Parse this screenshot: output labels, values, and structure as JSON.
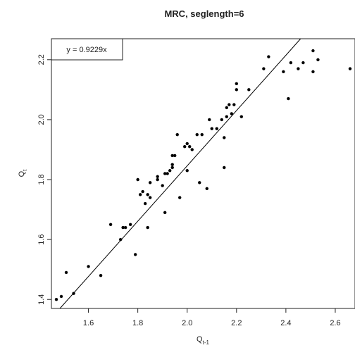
{
  "chart_data": {
    "type": "scatter",
    "title": "MRC, seglength=6",
    "xlabel": {
      "base": "Q",
      "sub": "t-1"
    },
    "ylabel": {
      "base": "Q",
      "sub": "t"
    },
    "xlim": [
      1.45,
      2.68
    ],
    "ylim": [
      1.37,
      2.27
    ],
    "xticks": [
      "1.6",
      "1.8",
      "2.0",
      "2.2",
      "2.4",
      "2.6"
    ],
    "yticks": [
      "1.4",
      "1.6",
      "1.8",
      "2.0",
      "2.2"
    ],
    "grid": false,
    "legend": {
      "position": "top-left",
      "text": "y = 0.9229x"
    },
    "fit_line": {
      "slope": 0.9229,
      "intercept": 0
    },
    "points": [
      [
        1.47,
        1.4
      ],
      [
        1.49,
        1.41
      ],
      [
        1.51,
        1.49
      ],
      [
        1.54,
        1.42
      ],
      [
        1.6,
        1.51
      ],
      [
        1.65,
        1.48
      ],
      [
        1.69,
        1.65
      ],
      [
        1.73,
        1.6
      ],
      [
        1.74,
        1.64
      ],
      [
        1.75,
        1.64
      ],
      [
        1.77,
        1.65
      ],
      [
        1.79,
        1.55
      ],
      [
        1.8,
        1.8
      ],
      [
        1.81,
        1.75
      ],
      [
        1.82,
        1.76
      ],
      [
        1.83,
        1.72
      ],
      [
        1.84,
        1.75
      ],
      [
        1.84,
        1.64
      ],
      [
        1.85,
        1.79
      ],
      [
        1.85,
        1.74
      ],
      [
        1.88,
        1.8
      ],
      [
        1.88,
        1.81
      ],
      [
        1.9,
        1.78
      ],
      [
        1.91,
        1.69
      ],
      [
        1.91,
        1.82
      ],
      [
        1.92,
        1.82
      ],
      [
        1.93,
        1.83
      ],
      [
        1.94,
        1.85
      ],
      [
        1.94,
        1.84
      ],
      [
        1.94,
        1.88
      ],
      [
        1.95,
        1.88
      ],
      [
        1.96,
        1.95
      ],
      [
        1.97,
        1.74
      ],
      [
        1.99,
        1.91
      ],
      [
        2.0,
        1.92
      ],
      [
        2.0,
        1.83
      ],
      [
        2.01,
        1.91
      ],
      [
        2.02,
        1.9
      ],
      [
        2.04,
        1.95
      ],
      [
        2.05,
        1.79
      ],
      [
        2.06,
        1.95
      ],
      [
        2.08,
        1.77
      ],
      [
        2.09,
        2.0
      ],
      [
        2.1,
        1.97
      ],
      [
        2.12,
        1.97
      ],
      [
        2.14,
        2.0
      ],
      [
        2.15,
        1.84
      ],
      [
        2.15,
        1.94
      ],
      [
        2.16,
        2.01
      ],
      [
        2.16,
        2.04
      ],
      [
        2.17,
        2.05
      ],
      [
        2.18,
        2.02
      ],
      [
        2.19,
        2.05
      ],
      [
        2.2,
        2.12
      ],
      [
        2.2,
        2.1
      ],
      [
        2.22,
        2.01
      ],
      [
        2.25,
        2.1
      ],
      [
        2.31,
        2.17
      ],
      [
        2.33,
        2.21
      ],
      [
        2.39,
        2.16
      ],
      [
        2.41,
        2.07
      ],
      [
        2.42,
        2.19
      ],
      [
        2.45,
        2.17
      ],
      [
        2.47,
        2.19
      ],
      [
        2.51,
        2.23
      ],
      [
        2.51,
        2.16
      ],
      [
        2.53,
        2.2
      ],
      [
        2.66,
        2.17
      ]
    ]
  }
}
